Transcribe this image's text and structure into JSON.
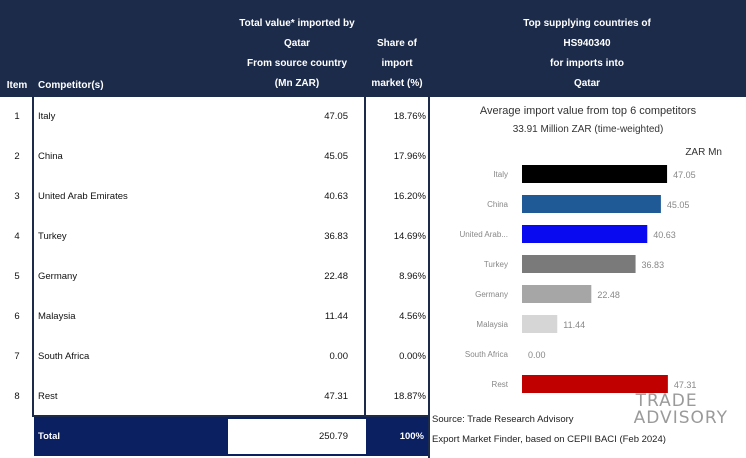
{
  "header": {
    "item": "Item",
    "competitor": "Competitor(s)",
    "value_lines": [
      "Total value* imported by",
      "Qatar",
      "From source country",
      "(Mn ZAR)"
    ],
    "share_lines": [
      "Share of",
      "import",
      "market (%)"
    ],
    "top_lines": [
      "Top supplying countries of",
      "HS940340",
      "for imports into",
      "Qatar"
    ]
  },
  "rows": [
    {
      "item": "1",
      "name": "Italy",
      "value": "47.05",
      "share": "18.76%"
    },
    {
      "item": "2",
      "name": "China",
      "value": "45.05",
      "share": "17.96%"
    },
    {
      "item": "3",
      "name": "United Arab Emirates",
      "value": "40.63",
      "share": "16.20%"
    },
    {
      "item": "4",
      "name": "Turkey",
      "value": "36.83",
      "share": "14.69%"
    },
    {
      "item": "5",
      "name": "Germany",
      "value": "22.48",
      "share": "8.96%"
    },
    {
      "item": "6",
      "name": "Malaysia",
      "value": "11.44",
      "share": "4.56%"
    },
    {
      "item": "7",
      "name": "South Africa",
      "value": "0.00",
      "share": "0.00%"
    },
    {
      "item": "8",
      "name": "Rest",
      "value": "47.31",
      "share": "18.87%"
    }
  ],
  "total": {
    "label": "Total",
    "value": "250.79",
    "share": "100%"
  },
  "chart_data": {
    "type": "bar",
    "orientation": "horizontal",
    "title": "Average import value from top 6 competitors",
    "subtitle": "33.91 Million ZAR (time-weighted)",
    "unit_label": "ZAR Mn",
    "categories": [
      "Italy",
      "China",
      "United Arab...",
      "Turkey",
      "Germany",
      "Malaysia",
      "South Africa",
      "Rest"
    ],
    "values": [
      47.05,
      45.05,
      40.63,
      36.83,
      22.48,
      11.44,
      0.0,
      47.31
    ],
    "value_labels": [
      "47.05",
      "45.05",
      "40.63",
      "36.83",
      "22.48",
      "11.44",
      "0.00",
      "47.31"
    ],
    "colors": [
      "#000000",
      "#1f5a96",
      "#0a0af0",
      "#7a7a7a",
      "#a6a6a6",
      "#d6d6d6",
      "#ffffff",
      "#c00000"
    ],
    "xlim": [
      0,
      60
    ],
    "xticks": [
      "-",
      "20",
      "40",
      "60"
    ],
    "xtick_values": [
      0,
      20,
      40,
      60
    ],
    "grid": false,
    "legend": "none"
  },
  "source": {
    "line1": "Source: Trade Research Advisory",
    "line2": "Export Market Finder, based on CEPII BACI (Feb 2024)"
  },
  "logo": {
    "line1": "TRADE",
    "line2": "ADVISORY"
  },
  "colors": {
    "header": "#1c2b4a",
    "total": "#0b2060"
  }
}
